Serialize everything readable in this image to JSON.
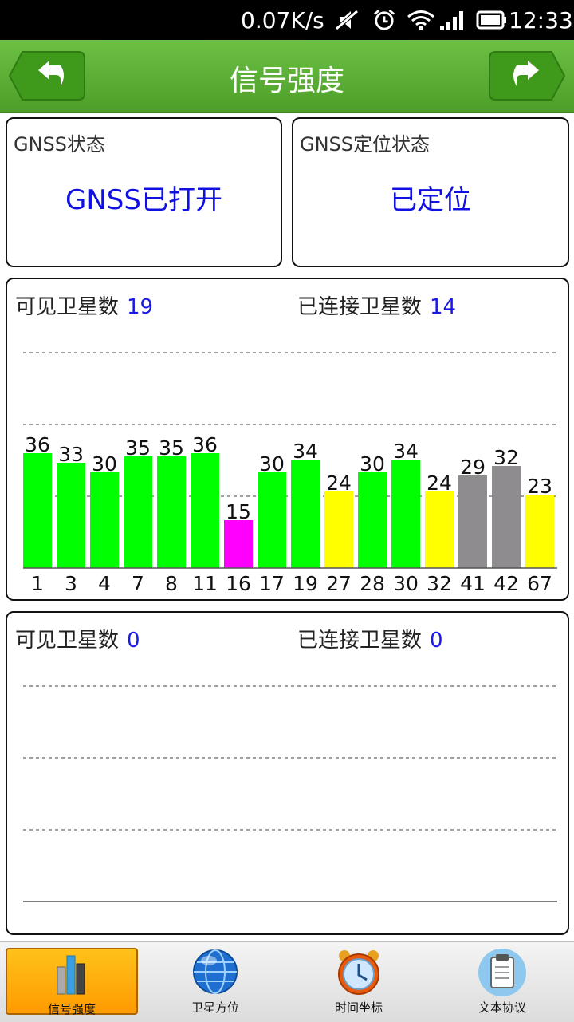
{
  "status_bar": {
    "net_speed": "0.07K/s",
    "time": "12:33",
    "icons": [
      "mute-icon",
      "alarm-icon",
      "wifi-icon",
      "signal-icon",
      "battery-icon"
    ]
  },
  "header": {
    "title": "信号强度",
    "back_icon": "back-arrow-icon",
    "forward_icon": "forward-arrow-icon",
    "bar_color": "#5cb033"
  },
  "gnss_status": {
    "label": "GNSS状态",
    "value": "GNSS已打开"
  },
  "fix_status": {
    "label": "GNSS定位状态",
    "value": "已定位"
  },
  "panel1": {
    "visible_label": "可见卫星数",
    "visible_count": "19",
    "connected_label": "已连接卫星数",
    "connected_count": "14"
  },
  "panel2": {
    "visible_label": "可见卫星数",
    "visible_count": "0",
    "connected_label": "已连接卫星数",
    "connected_count": "0"
  },
  "colors": {
    "accent": "#1a1ae8",
    "green": "#00ff00",
    "yellow": "#ffff00",
    "gray": "#8e8c8f",
    "magenta": "#ff00ff",
    "active_tab": "#ffae00"
  },
  "chart_data": [
    {
      "type": "bar",
      "categories": [
        "1",
        "3",
        "4",
        "7",
        "8",
        "11",
        "16",
        "17",
        "19",
        "27",
        "28",
        "30",
        "32",
        "41",
        "42",
        "67"
      ],
      "values": [
        36,
        33,
        30,
        35,
        35,
        36,
        15,
        30,
        34,
        24,
        30,
        34,
        24,
        29,
        32,
        23
      ],
      "bar_colors": [
        "green",
        "green",
        "green",
        "green",
        "green",
        "green",
        "magenta",
        "green",
        "green",
        "yellow",
        "green",
        "green",
        "yellow",
        "gray",
        "gray",
        "yellow"
      ],
      "ylim": [
        0,
        70
      ],
      "gridlines": [
        22.5,
        45,
        67.5
      ],
      "grid": true
    },
    {
      "type": "bar",
      "categories": [],
      "values": [],
      "ylim": [
        0,
        70
      ],
      "gridlines": [
        22.5,
        45,
        67.5
      ],
      "grid": true
    }
  ],
  "tabs": [
    {
      "label": "信号强度",
      "icon": "bar-chart-icon",
      "active": true
    },
    {
      "label": "卫星方位",
      "icon": "globe-icon",
      "active": false
    },
    {
      "label": "时间坐标",
      "icon": "alarm-clock-icon",
      "active": false
    },
    {
      "label": "文本协议",
      "icon": "clipboard-icon",
      "active": false
    }
  ]
}
